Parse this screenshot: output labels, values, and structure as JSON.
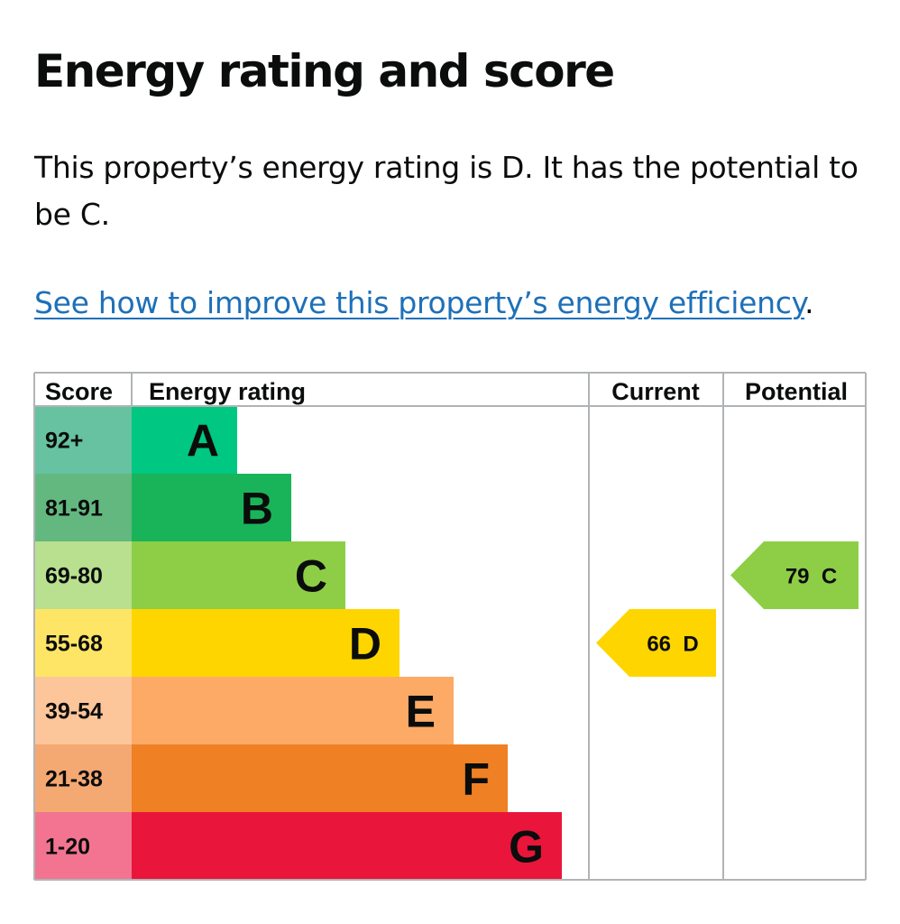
{
  "heading": "Energy rating and score",
  "description": "This property’s energy rating is D. It has the potential to be C.",
  "improve_link": "See how to improve this property’s energy efficiency",
  "improve_link_suffix": ".",
  "chart_data": {
    "type": "bar",
    "headers": {
      "score": "Score",
      "rating": "Energy rating",
      "current": "Current",
      "potential": "Potential"
    },
    "bands": [
      {
        "score": "92+",
        "letter": "A",
        "color": "#008054",
        "score_bg": "#66c2a0",
        "bar_color": "#00c781",
        "level": 1
      },
      {
        "score": "81-91",
        "letter": "B",
        "color": "#19b459",
        "score_bg": "#63b87f",
        "bar_color": "#19b459",
        "level": 2
      },
      {
        "score": "69-80",
        "letter": "C",
        "color": "#8dce46",
        "score_bg": "#b8e08e",
        "bar_color": "#8dce46",
        "level": 3
      },
      {
        "score": "55-68",
        "letter": "D",
        "color": "#ffd500",
        "score_bg": "#ffe566",
        "bar_color": "#ffd500",
        "level": 4
      },
      {
        "score": "39-54",
        "letter": "E",
        "color": "#fcaa65",
        "score_bg": "#fdc59a",
        "bar_color": "#fcaa65",
        "level": 5
      },
      {
        "score": "21-38",
        "letter": "F",
        "color": "#ef8023",
        "score_bg": "#f4a872",
        "bar_color": "#ef8023",
        "level": 6
      },
      {
        "score": "1-20",
        "letter": "G",
        "color": "#e9153b",
        "score_bg": "#f27490",
        "bar_color": "#e9153b",
        "level": 7
      }
    ],
    "current": {
      "score": 66,
      "letter": "D",
      "label": "66  D",
      "color": "#ffd500"
    },
    "potential": {
      "score": 79,
      "letter": "C",
      "label": "79  C",
      "color": "#8dce46"
    }
  }
}
